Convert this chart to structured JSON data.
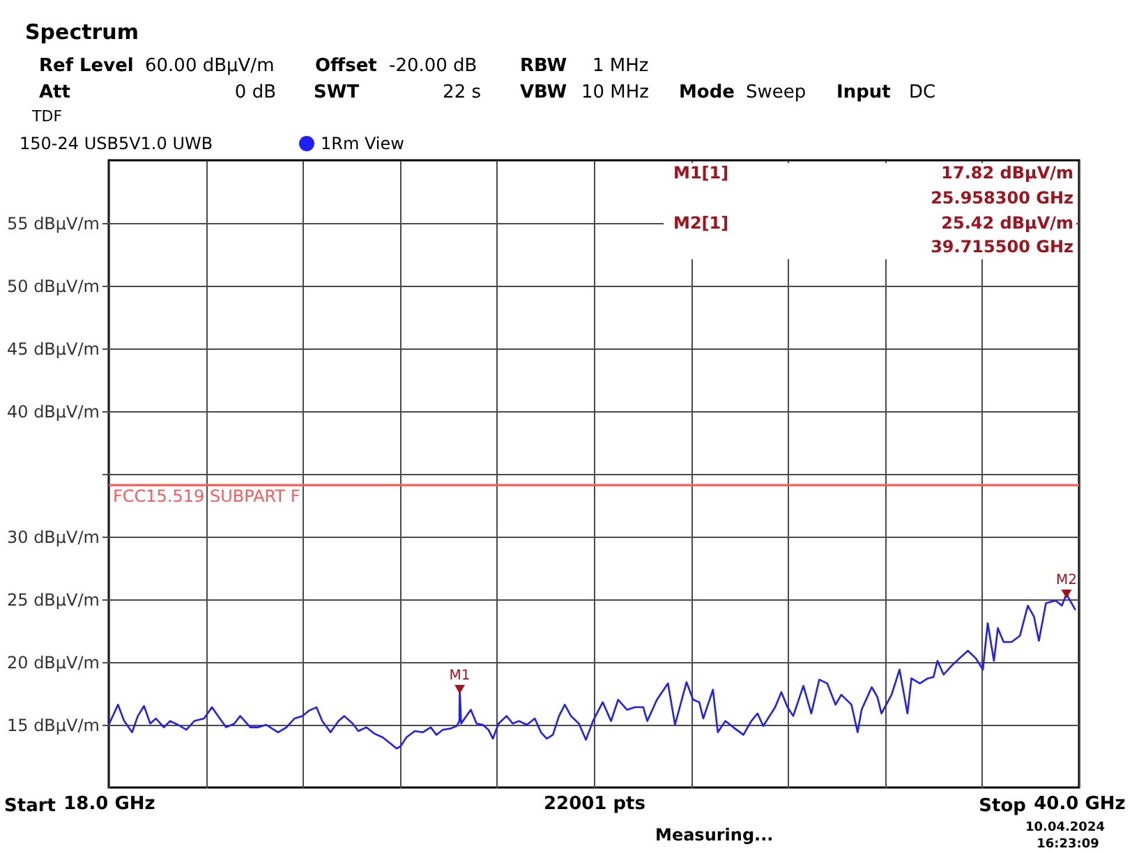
{
  "chart_data": {
    "type": "line",
    "title": "Spectrum",
    "subtitle": "150-24 USB5V1.0 UWB",
    "xlabel": "22001 pts",
    "annotations": [
      "Ref Level",
      "60.00 dBμV/m",
      "Offset",
      "-20.00 dB",
      "RBW",
      "1 MHz",
      "Att",
      "0 dB",
      "SWT",
      "22 s",
      "VBW",
      "10 MHz",
      "Mode",
      "Sweep",
      "Input",
      "DC",
      "TDF",
      "M1[1]",
      "17.82 dBμV/m",
      "25.958300 GHz",
      "M2[1]",
      "25.42 dBμV/m",
      "39.715500 GHz",
      "Start",
      "Stop",
      "Measuring...",
      "10.04.2024",
      "16:23:09",
      {
        "text": "M1",
        "x": 25.9583,
        "y": 17.82
      },
      {
        "text": "M2",
        "x": 39.7155,
        "y": 25.42
      }
    ],
    "xlim": [
      18,
      40
    ],
    "xticks": [
      {
        "value": 18,
        "label": "18.0 GHz"
      },
      {
        "value": 20.2,
        "label": null
      },
      {
        "value": 22.4,
        "label": null
      },
      {
        "value": 24.6,
        "label": null
      },
      {
        "value": 26.8,
        "label": null
      },
      {
        "value": 29,
        "label": null
      },
      {
        "value": 31.2,
        "label": null
      },
      {
        "value": 33.4,
        "label": null
      },
      {
        "value": 35.6,
        "label": null
      },
      {
        "value": 37.8,
        "label": null
      },
      {
        "value": 40,
        "label": "40.0 GHz"
      }
    ],
    "ylim": [
      10,
      60
    ],
    "yticks": [
      {
        "value": 15,
        "label": "15 dBμV/m"
      },
      {
        "value": 20,
        "label": "20 dBμV/m"
      },
      {
        "value": 25,
        "label": "25 dBμV/m"
      },
      {
        "value": 30,
        "label": "30 dBμV/m"
      },
      {
        "value": 35,
        "label": null
      },
      {
        "value": 40,
        "label": "40 dBμV/m"
      },
      {
        "value": 45,
        "label": "45 dBμV/m"
      },
      {
        "value": 50,
        "label": "50 dBμV/m"
      },
      {
        "value": 55,
        "label": "55 dBμV/m"
      }
    ],
    "grid": true,
    "legend": "top left",
    "series": [
      {
        "name": "1Rm View",
        "color": "#1e1eff",
        "x": [
          18.0,
          18.21,
          18.35,
          18.53,
          18.66,
          18.8,
          18.94,
          19.07,
          19.25,
          19.39,
          19.57,
          19.76,
          19.94,
          20.16,
          20.34,
          20.48,
          20.66,
          20.85,
          20.98,
          21.21,
          21.39,
          21.57,
          21.84,
          22.03,
          22.21,
          22.39,
          22.53,
          22.71,
          22.84,
          23.03,
          23.21,
          23.34,
          23.53,
          23.66,
          23.84,
          24.02,
          24.21,
          24.39,
          24.53,
          24.62,
          24.75,
          24.94,
          25.12,
          25.3,
          25.43,
          25.57,
          25.75,
          25.89,
          25.95,
          25.9583,
          25.99,
          26.07,
          26.21,
          26.34,
          26.48,
          26.61,
          26.71,
          26.84,
          27.02,
          27.16,
          27.3,
          27.48,
          27.66,
          27.8,
          27.93,
          28.07,
          28.21,
          28.34,
          28.48,
          28.66,
          28.82,
          28.98,
          29.2,
          29.39,
          29.55,
          29.75,
          29.93,
          30.12,
          30.21,
          30.43,
          30.68,
          30.84,
          31.1,
          31.25,
          31.39,
          31.48,
          31.7,
          31.81,
          31.98,
          32.16,
          32.39,
          32.57,
          32.71,
          32.84,
          33.11,
          33.25,
          33.39,
          33.52,
          33.75,
          33.93,
          34.11,
          34.29,
          34.48,
          34.61,
          34.84,
          34.98,
          35.07,
          35.3,
          35.43,
          35.52,
          35.75,
          35.93,
          36.11,
          36.2,
          36.39,
          36.57,
          36.7,
          36.79,
          36.93,
          37.11,
          37.29,
          37.48,
          37.66,
          37.82,
          37.93,
          38.07,
          38.16,
          38.29,
          38.47,
          38.66,
          38.84,
          38.98,
          39.09,
          39.25,
          39.47,
          39.61,
          39.7155,
          39.91
        ],
        "values": [
          15.0,
          16.6,
          15.3,
          14.4,
          15.7,
          16.5,
          15.1,
          15.5,
          14.8,
          15.3,
          15.0,
          14.6,
          15.3,
          15.5,
          16.4,
          15.7,
          14.8,
          15.1,
          15.7,
          14.8,
          14.8,
          15.0,
          14.4,
          14.8,
          15.5,
          15.7,
          16.1,
          16.4,
          15.3,
          14.4,
          15.3,
          15.7,
          15.1,
          14.5,
          14.8,
          14.3,
          14.0,
          13.5,
          13.1,
          13.3,
          14.0,
          14.5,
          14.4,
          14.8,
          14.2,
          14.6,
          14.7,
          14.9,
          15.3,
          17.82,
          15.1,
          15.5,
          16.2,
          15.1,
          15.0,
          14.6,
          13.9,
          15.1,
          15.7,
          15.1,
          15.3,
          15.0,
          15.5,
          14.4,
          13.9,
          14.2,
          15.7,
          16.6,
          15.7,
          15.1,
          13.8,
          15.3,
          16.8,
          15.3,
          17.0,
          16.2,
          16.4,
          16.4,
          15.3,
          17.0,
          18.3,
          15.0,
          18.4,
          17.0,
          16.8,
          15.5,
          17.8,
          14.4,
          15.3,
          14.8,
          14.2,
          15.3,
          15.9,
          14.9,
          16.4,
          17.6,
          16.4,
          15.7,
          18.1,
          15.9,
          18.6,
          18.3,
          16.6,
          17.4,
          16.6,
          14.4,
          16.2,
          18.0,
          17.2,
          15.9,
          17.4,
          19.4,
          15.9,
          18.7,
          18.3,
          18.7,
          18.8,
          20.1,
          19.0,
          19.7,
          20.3,
          20.9,
          20.3,
          19.4,
          23.1,
          20.1,
          22.7,
          21.6,
          21.6,
          22.1,
          24.5,
          23.6,
          21.7,
          24.7,
          24.9,
          24.5,
          25.42,
          24.2
        ]
      },
      {
        "type": "scatter",
        "marker": "triangle",
        "color": "#a3121c",
        "x": [
          25.9583,
          39.7155
        ],
        "values": [
          17.82,
          25.42
        ]
      }
    ],
    "ref_lines": [
      {
        "axis": "y",
        "value": 34.1,
        "label": "FCC15.519 SUBPART F",
        "color": "#ff5a5a"
      }
    ]
  }
}
